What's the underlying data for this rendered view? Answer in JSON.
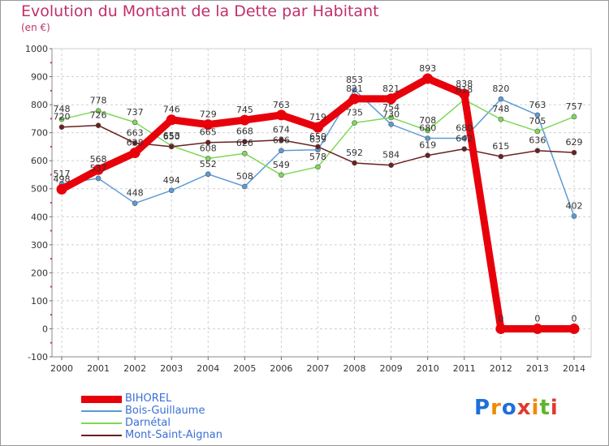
{
  "title": "Evolution du Montant de la Dette par Habitant",
  "unit_label": "(en €)",
  "logo": {
    "text": "Proxiti",
    "letter_colors": [
      "#1e6fd9",
      "#f08a00",
      "#1e6fd9",
      "#e03a2f",
      "#f08a00",
      "#5bb52e",
      "#e03a2f"
    ]
  },
  "chart_data": {
    "type": "line",
    "x": [
      "2000",
      "2001",
      "2002",
      "2003",
      "2004",
      "2005",
      "2006",
      "2007",
      "2008",
      "2009",
      "2010",
      "2011",
      "2012",
      "2013",
      "2014"
    ],
    "ylim": [
      -100,
      1000
    ],
    "yticks": [
      "-100",
      "0",
      "100",
      "200",
      "300",
      "400",
      "500",
      "600",
      "700",
      "800",
      "900",
      "1000"
    ],
    "grid": true,
    "legend_position": "bottom-left",
    "series": [
      {
        "name": "BIHOREL",
        "color": "#e8000b",
        "emphasis": true,
        "values": [
          498,
          568,
          628,
          746,
          729,
          745,
          763,
          719,
          821,
          821,
          893,
          838,
          0,
          0,
          0
        ],
        "labels": [
          "498",
          "568",
          "628",
          "746",
          "729",
          "745",
          "763",
          "719",
          "821",
          "821",
          "893",
          "838",
          "0",
          "0",
          "0"
        ]
      },
      {
        "name": "Bois-Guillaume",
        "color": "#5b9bd5",
        "values": [
          517,
          537,
          448,
          494,
          552,
          508,
          636,
          639,
          853,
          730,
          680,
          680,
          820,
          763,
          402
        ],
        "labels": [
          "517",
          "537",
          "448",
          "494",
          "552",
          "508",
          "636",
          "639",
          "853",
          "730",
          "680",
          "680",
          "820",
          "763",
          "402"
        ]
      },
      {
        "name": "Darnétal",
        "color": "#7ed957",
        "values": [
          748,
          778,
          737,
          653,
          608,
          626,
          549,
          578,
          735,
          754,
          708,
          818,
          748,
          705,
          757
        ],
        "labels": [
          "748",
          "778",
          "737",
          "653",
          "608",
          "626",
          "549",
          "578",
          "735",
          "754",
          "708",
          "818",
          "748",
          "705",
          "757"
        ]
      },
      {
        "name": "Mont-Saint-Aignan",
        "color": "#6b1f1f",
        "values": [
          720,
          726,
          663,
          650,
          665,
          668,
          674,
          650,
          592,
          584,
          619,
          642,
          615,
          636,
          629
        ],
        "labels": [
          "720",
          "726",
          "663",
          "650",
          "665",
          "668",
          "674",
          "650",
          "592",
          "584",
          "619",
          "642",
          "615",
          "636",
          "629"
        ]
      }
    ]
  }
}
